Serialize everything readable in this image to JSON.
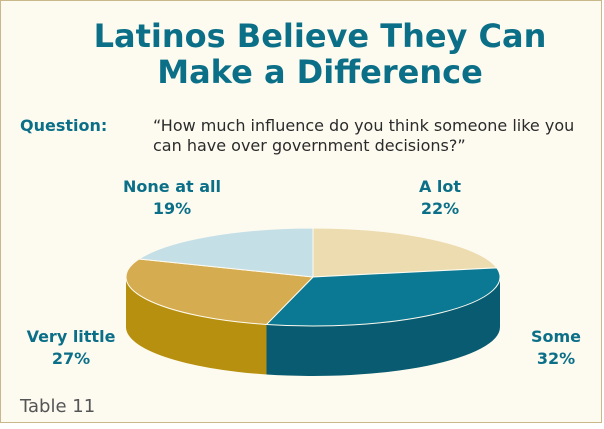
{
  "title_line1": "Latinos Believe They Can",
  "title_line2": "Make a Difference",
  "question_label": "Question:",
  "question_text": "“How much influence do you think someone like you can have over government decisions?”",
  "footer": "Table 11",
  "colors": {
    "title": "#0b6f88",
    "background": "#fdfbf0",
    "border": "#c9b98a"
  },
  "chart_data": {
    "type": "pie",
    "style": "3d",
    "slices": [
      {
        "label": "A lot",
        "value": 22,
        "value_label": "22%",
        "top_color": "#eddcb0",
        "side_color": "#c9b27a"
      },
      {
        "label": "Some",
        "value": 32,
        "value_label": "32%",
        "top_color": "#0b7994",
        "side_color": "#085b70"
      },
      {
        "label": "Very little",
        "value": 27,
        "value_label": "27%",
        "top_color": "#d6ac50",
        "side_color": "#b8900f"
      },
      {
        "label": "None at all",
        "value": 19,
        "value_label": "19%",
        "top_color": "#c5dfe7",
        "side_color": "#9fbfca"
      }
    ]
  }
}
